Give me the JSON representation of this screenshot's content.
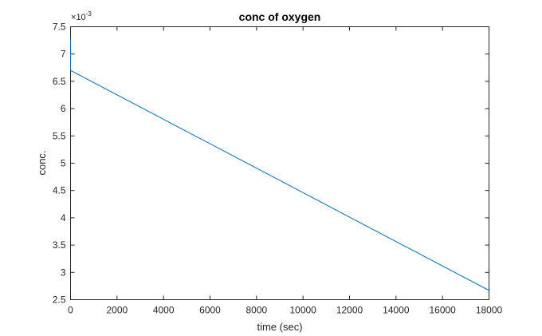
{
  "chart_data": {
    "type": "line",
    "title": "conc of oxygen",
    "xlabel": "time (sec)",
    "ylabel": "conc.",
    "xlim": [
      0,
      18000
    ],
    "ylim": [
      0.0025,
      0.0075
    ],
    "x_ticks": [
      0,
      2000,
      4000,
      6000,
      8000,
      10000,
      12000,
      14000,
      16000,
      18000
    ],
    "y_ticks": [
      2.5,
      3,
      3.5,
      4,
      4.5,
      5,
      5.5,
      6,
      6.5,
      7,
      7.5
    ],
    "y_tick_multiplier_base": "10",
    "y_tick_multiplier_exponent": "-3",
    "grid": false,
    "line_color": "#0072bd",
    "series": [
      {
        "x": [
          0,
          0,
          18000
        ],
        "y": [
          0.00728,
          0.0067,
          0.00267
        ]
      }
    ]
  }
}
